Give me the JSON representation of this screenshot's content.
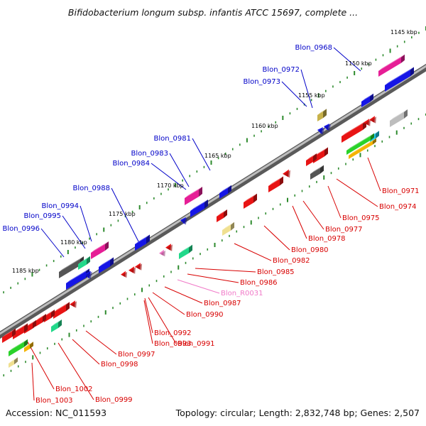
{
  "title": "Bifidobacterium longum subsp. infantis ATCC 15697, complete ...",
  "footer": {
    "accession": "Accession: NC_011593",
    "summary": "Topology: circular; Length: 2,832,748 bp; Genes: 2,507"
  },
  "colors": {
    "forward_label": "#0000c8",
    "reverse_label": "#d80000",
    "rna_label": "#f07ac8",
    "backbone": "#888888",
    "tick": "#2e8b2e"
  },
  "kbp_marks": [
    "1145 kbp",
    "1150 kbp",
    "1155 kbp",
    "1160 kbp",
    "1165 kbp",
    "1170 kbp",
    "1175 kbp",
    "1180 kbp",
    "1185 kbp"
  ],
  "forward_genes": [
    "Blon_0968",
    "Blon_0972",
    "Blon_0973",
    "Blon_0981",
    "Blon_0983",
    "Blon_0984",
    "Blon_0988",
    "Blon_0994",
    "Blon_0995",
    "Blon_0996"
  ],
  "reverse_genes": [
    "Blon_0971",
    "Blon_0974",
    "Blon_0975",
    "Blon_0977",
    "Blon_0978",
    "Blon_0980",
    "Blon_0982",
    "Blon_0985",
    "Blon_0986",
    "Blon_R0031",
    "Blon_0987",
    "Blon_0990",
    "Blon_0992",
    "Blon_0993",
    "Blon_0991",
    "Blon_0997",
    "Blon_0998",
    "Blon_1002",
    "Blon_0999",
    "Blon_1003"
  ]
}
